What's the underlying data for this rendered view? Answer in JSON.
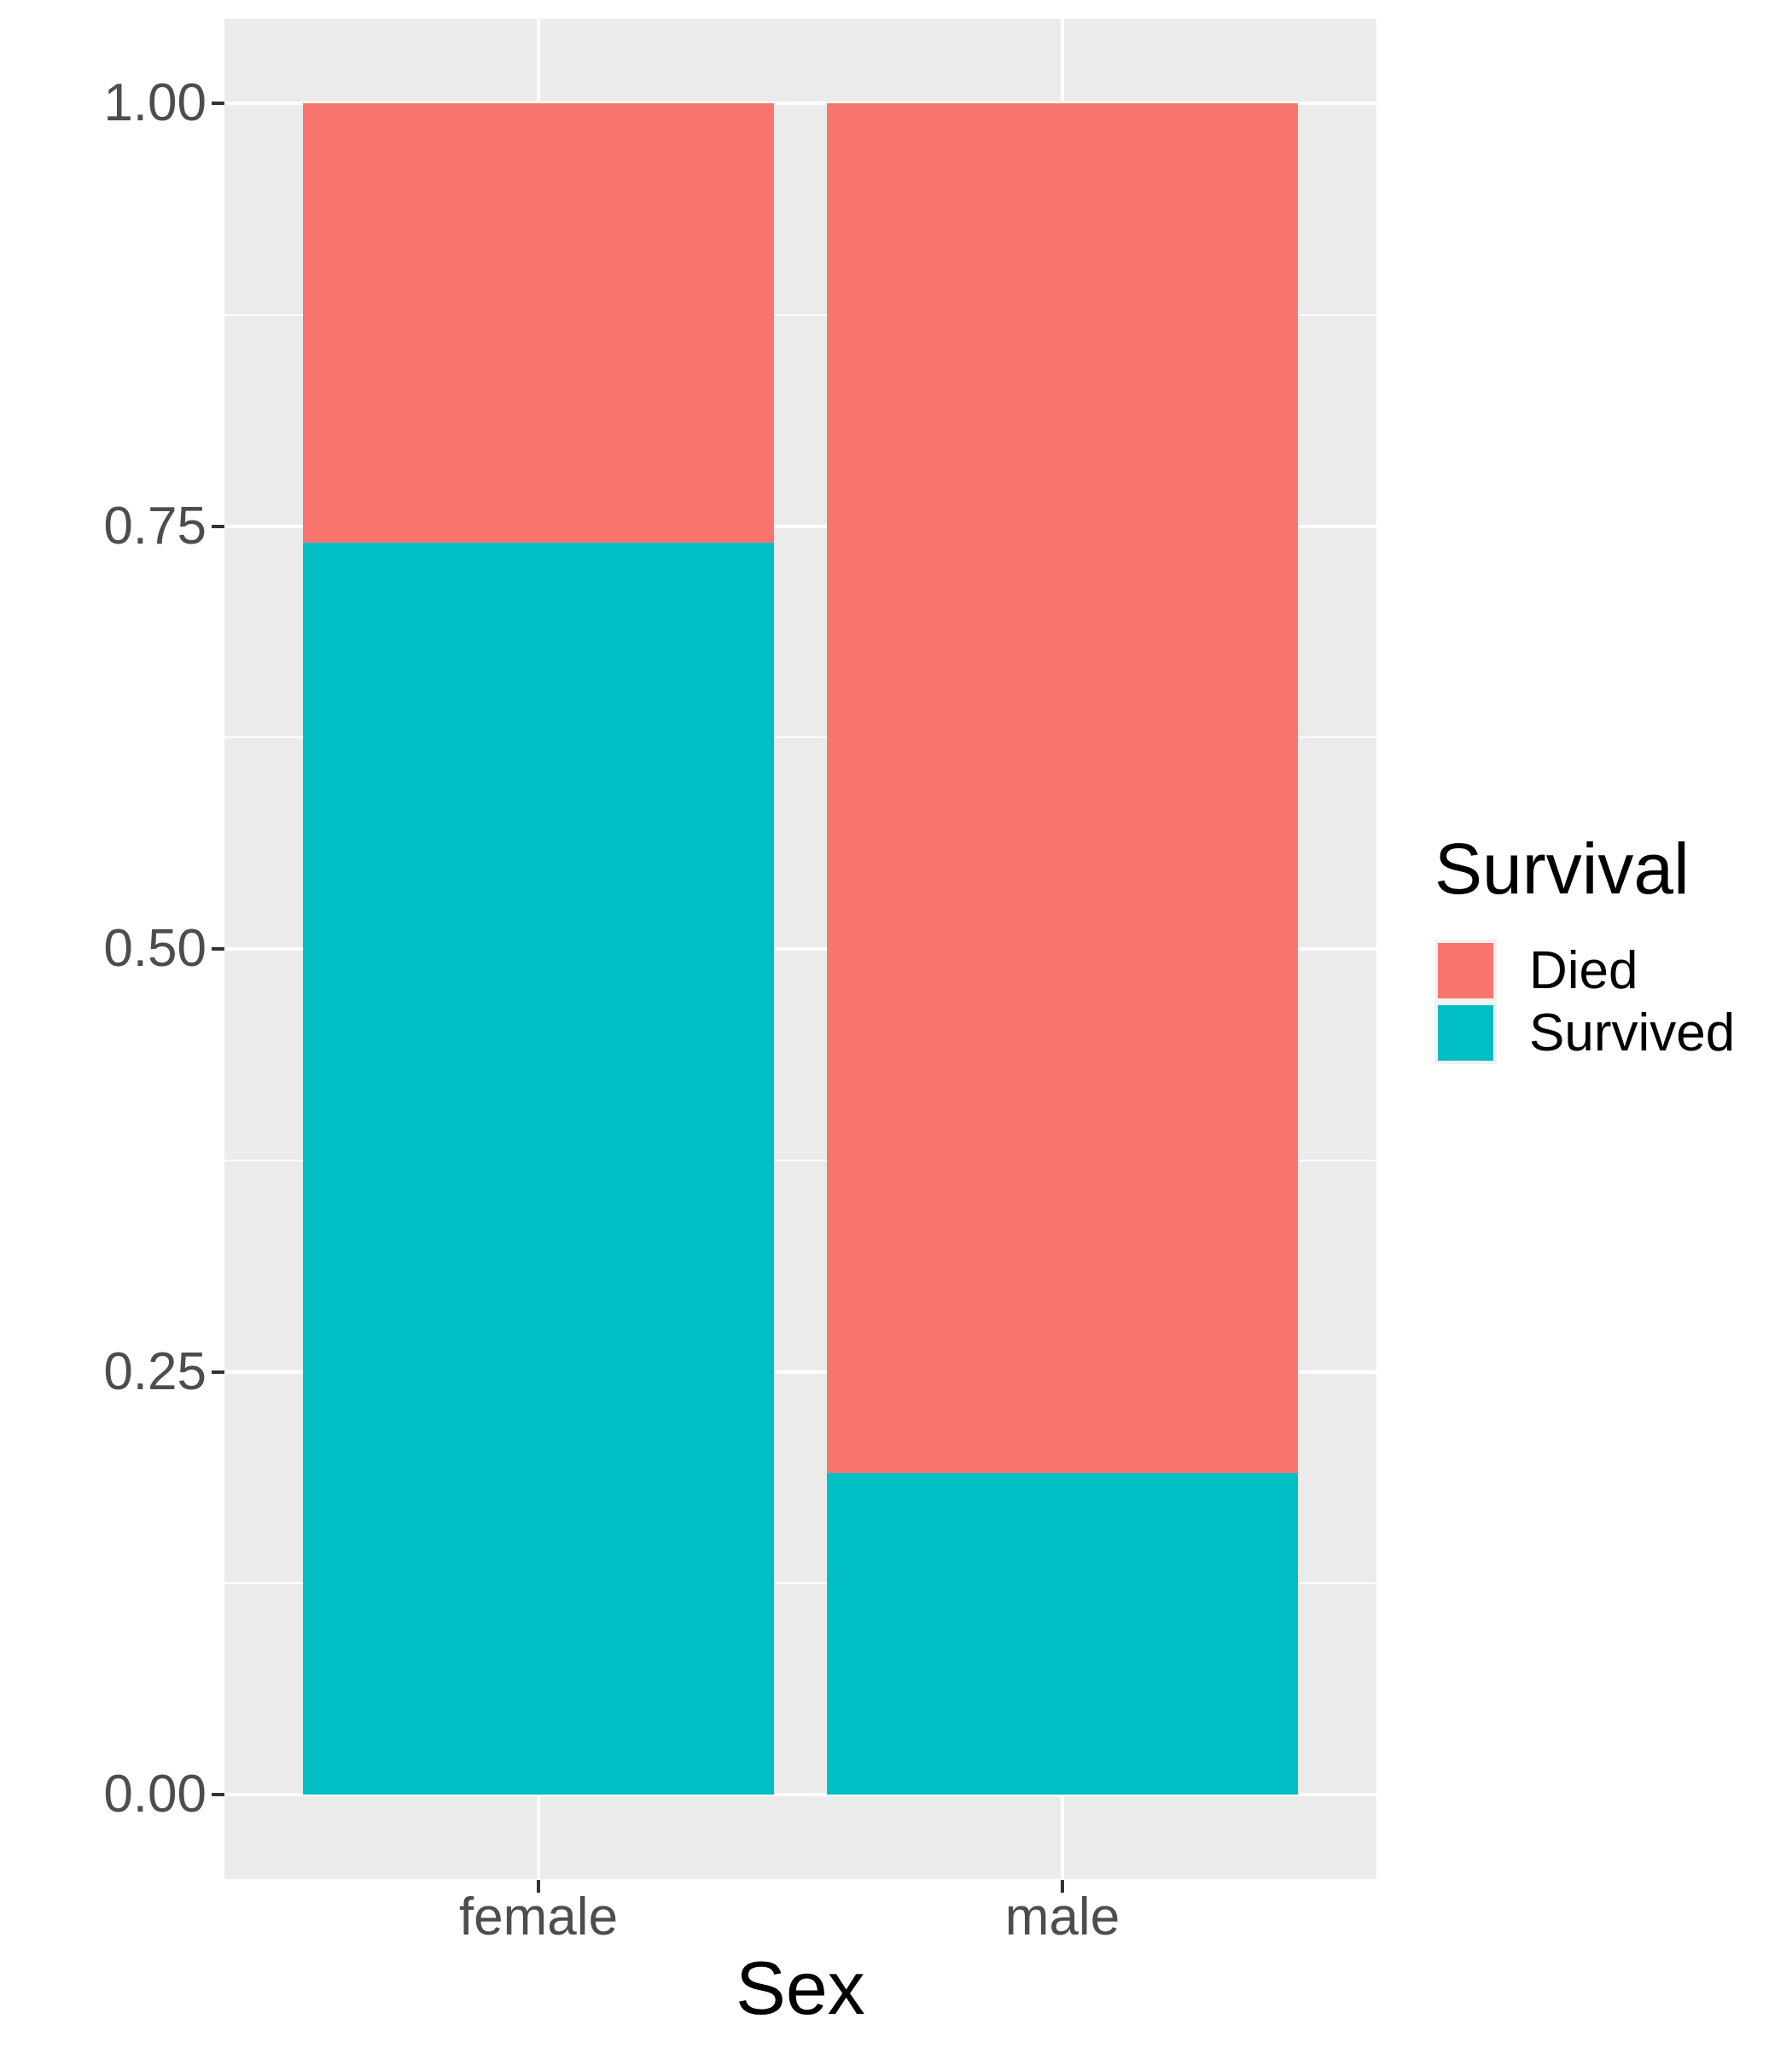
{
  "chart_data": {
    "type": "bar",
    "subtype": "stacked-proportion",
    "title": "",
    "xlabel": "Sex",
    "ylabel": "",
    "categories": [
      "female",
      "male"
    ],
    "series": [
      {
        "name": "Died",
        "color": "#F8766D",
        "values": [
          0.26,
          0.81
        ]
      },
      {
        "name": "Survived",
        "color": "#00BFC4",
        "values": [
          0.74,
          0.19
        ]
      }
    ],
    "stack_order_bottom_to_top": [
      "Survived",
      "Died"
    ],
    "ylim": [
      0,
      1
    ],
    "y_ticks": [
      {
        "value": 0.0,
        "label": "0.00"
      },
      {
        "value": 0.25,
        "label": "0.25"
      },
      {
        "value": 0.5,
        "label": "0.50"
      },
      {
        "value": 0.75,
        "label": "0.75"
      },
      {
        "value": 1.0,
        "label": "1.00"
      }
    ],
    "y_minor_breaks": [
      0.125,
      0.375,
      0.625,
      0.875
    ],
    "grid": "white major and minor horizontal lines, white vertical lines at category centers, on grey panel",
    "legend": {
      "title": "Survival",
      "position": "right",
      "entries": [
        "Died",
        "Survived"
      ]
    }
  },
  "styles": {
    "panel_background": "#EBEBEB",
    "gridline_color": "#FFFFFF",
    "axis_text_color": "#4D4D4D",
    "axis_title_color": "#000000",
    "legend_text_color": "#000000",
    "tick_mark_color": "#333333",
    "legend_key_background": "#F2F2F2",
    "figure_background": "#FFFFFF"
  }
}
